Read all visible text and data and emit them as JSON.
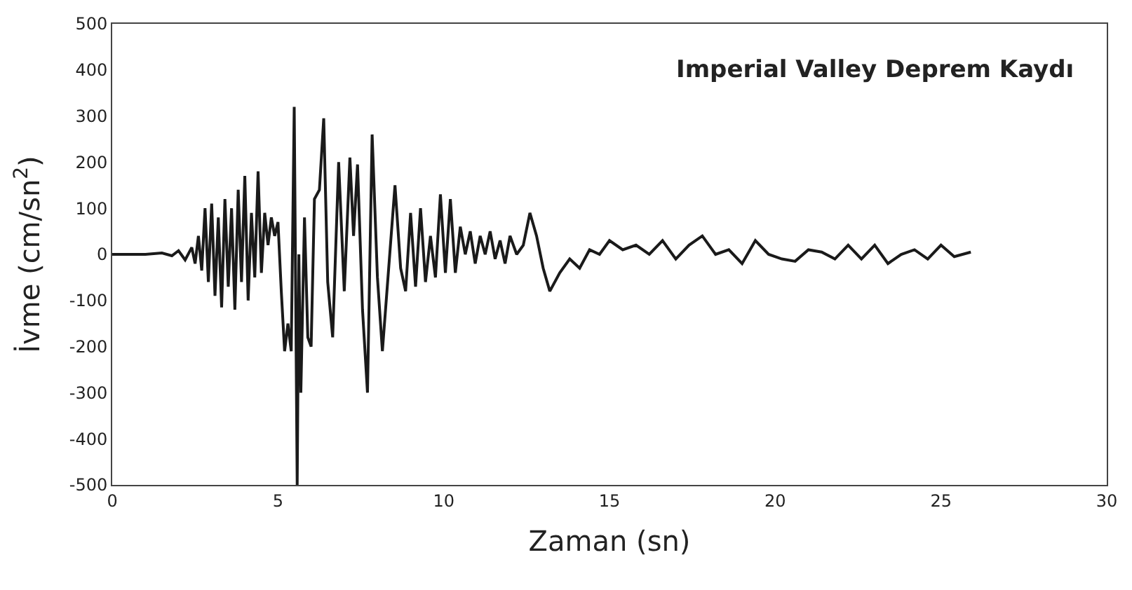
{
  "chart_data": {
    "type": "line",
    "title": "Imperial Valley Deprem Kaydı",
    "xlabel": "Zaman (sn)",
    "ylabel": "İvme (cm/sn$^{2}$)",
    "xlim": [
      0,
      30
    ],
    "xticks": [
      0,
      5,
      10,
      15,
      20,
      25,
      30
    ],
    "ylim": [
      -500,
      500
    ],
    "yticks": [
      -500,
      -400,
      -300,
      -200,
      -100,
      0,
      100,
      200,
      300,
      400,
      500
    ],
    "marker": "none",
    "line_style": "solid",
    "series": [
      {
        "color": "#1a1a1a",
        "x": [
          0,
          1.0,
          1.5,
          1.8,
          2.0,
          2.2,
          2.4,
          2.5,
          2.6,
          2.7,
          2.8,
          2.9,
          3.0,
          3.1,
          3.2,
          3.3,
          3.4,
          3.5,
          3.6,
          3.7,
          3.8,
          3.9,
          4.0,
          4.1,
          4.2,
          4.3,
          4.4,
          4.5,
          4.6,
          4.7,
          4.8,
          4.9,
          5.0,
          5.1,
          5.2,
          5.3,
          5.4,
          5.49,
          5.58,
          5.63,
          5.69,
          5.8,
          5.9,
          6.0,
          6.1,
          6.25,
          6.38,
          6.5,
          6.65,
          6.83,
          7.0,
          7.17,
          7.28,
          7.4,
          7.55,
          7.7,
          7.84,
          8.0,
          8.15,
          8.35,
          8.53,
          8.7,
          8.85,
          9.0,
          9.15,
          9.3,
          9.45,
          9.6,
          9.75,
          9.9,
          10.05,
          10.2,
          10.35,
          10.5,
          10.65,
          10.8,
          10.95,
          11.1,
          11.25,
          11.4,
          11.55,
          11.7,
          11.85,
          12.0,
          12.2,
          12.4,
          12.6,
          12.8,
          13.0,
          13.2,
          13.5,
          13.8,
          14.1,
          14.4,
          14.7,
          15.0,
          15.4,
          15.8,
          16.2,
          16.6,
          17.0,
          17.4,
          17.8,
          18.2,
          18.6,
          19.0,
          19.4,
          19.8,
          20.2,
          20.6,
          21.0,
          21.4,
          21.8,
          22.2,
          22.6,
          23.0,
          23.4,
          23.8,
          24.2,
          24.6,
          25.0,
          25.4,
          25.9
        ],
        "values": [
          0,
          0,
          3,
          -3,
          8,
          -12,
          15,
          -20,
          40,
          -35,
          100,
          -60,
          110,
          -90,
          80,
          -115,
          120,
          -70,
          100,
          -120,
          140,
          -60,
          170,
          -100,
          90,
          -50,
          180,
          -40,
          90,
          20,
          80,
          40,
          70,
          -80,
          -210,
          -150,
          -210,
          320,
          -500,
          0,
          -300,
          80,
          -180,
          -200,
          120,
          140,
          295,
          -60,
          -180,
          200,
          -80,
          210,
          40,
          195,
          -120,
          -300,
          260,
          -50,
          -210,
          -20,
          150,
          -30,
          -80,
          90,
          -70,
          100,
          -60,
          40,
          -50,
          130,
          -40,
          120,
          -40,
          60,
          0,
          50,
          -20,
          40,
          0,
          50,
          -10,
          30,
          -20,
          40,
          0,
          20,
          90,
          40,
          -30,
          -80,
          -40,
          -10,
          -30,
          10,
          0,
          30,
          10,
          20,
          0,
          30,
          -10,
          20,
          40,
          0,
          10,
          -20,
          30,
          0,
          -10,
          -15,
          10,
          5,
          -10,
          20,
          -10,
          20,
          -20,
          0,
          10,
          -10,
          20,
          -5,
          5
        ]
      }
    ]
  }
}
